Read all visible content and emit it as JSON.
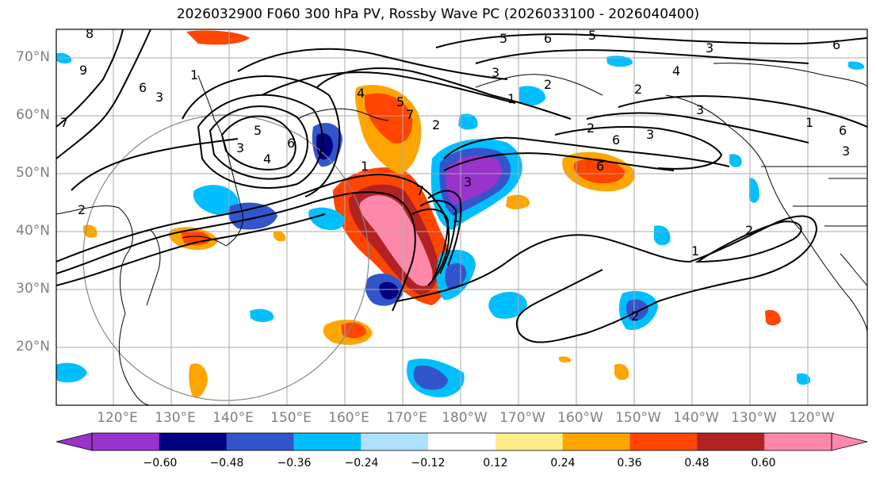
{
  "title": "2026032900 F060 300 hPa PV, Rossby Wave PC (2026033100 - 2026040400)",
  "lat_labels": [
    "70°N",
    "60°N",
    "50°N",
    "40°N",
    "30°N",
    "20°N"
  ],
  "lon_labels": [
    "120°E",
    "130°E",
    "140°E",
    "150°E",
    "160°E",
    "170°E",
    "180°W",
    "170°W",
    "160°W",
    "150°W",
    "140°W",
    "130°W",
    "120°W"
  ],
  "colorbar": {
    "colors": [
      "#9933cc",
      "#000080",
      "#3355cc",
      "#00bfff",
      "#b0e0ff",
      "#ffffff",
      "#ffee88",
      "#ffa500",
      "#ff4500",
      "#b22222",
      "#ff88aa"
    ],
    "ticks": [
      "−0.60",
      "−0.48",
      "−0.36",
      "−0.24",
      "−0.12",
      "0.12",
      "0.24",
      "0.36",
      "0.48",
      "0.60"
    ]
  },
  "contour_labels": [
    "8",
    "9",
    "6",
    "3",
    "1",
    "7",
    "5",
    "3",
    "4",
    "6",
    "4",
    "5",
    "7",
    "2",
    "1",
    "1",
    "2",
    "3",
    "6",
    "5",
    "3",
    "6",
    "5",
    "4",
    "6",
    "3",
    "2",
    "1",
    "2",
    "2",
    "1",
    "3",
    "2",
    "1",
    "6",
    "2",
    "3",
    "6",
    "7",
    "3"
  ],
  "map_colors": {
    "ocean": "#ffffff",
    "grid": "#aaaaaa",
    "contour": "#000000"
  }
}
